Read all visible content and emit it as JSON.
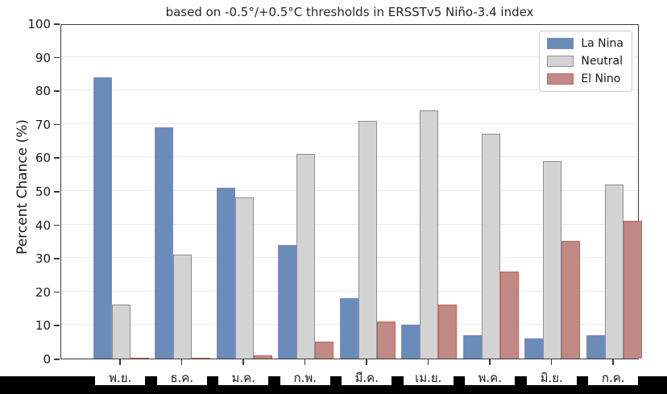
{
  "figure": {
    "title": "based on -0.5°/+0.5°C thresholds in ERSSTv5 Niño-3.4 index",
    "ylabel": "Percent Chance (%)"
  },
  "chart_data": {
    "type": "bar",
    "title": "based on -0.5°/+0.5°C thresholds in ERSSTv5 Niño-3.4 index",
    "xlabel": "",
    "ylabel": "Percent Chance (%)",
    "ylim": [
      0,
      100
    ],
    "ytick_step": 10,
    "grid": true,
    "legend_position": "upper right",
    "categories": [
      "พ.ย.",
      "ธ.ค.",
      "ม.ค.",
      "ก.พ.",
      "มี.ค.",
      "เม.ย.",
      "พ.ค.",
      "มิ.ย.",
      "ก.ค."
    ],
    "series": [
      {
        "name": "La Nina",
        "fill": "#6a8cb8",
        "edge": "#8487cb",
        "values": [
          84,
          69,
          51,
          34,
          18,
          10,
          7,
          6,
          7
        ]
      },
      {
        "name": "Neutral",
        "fill": "#d3d3d3",
        "edge": "#8e8e8e",
        "values": [
          16,
          31,
          48,
          61,
          71,
          74,
          67,
          59,
          52
        ]
      },
      {
        "name": "El Nino",
        "fill": "#c08984",
        "edge": "#c4625c",
        "values": [
          0,
          0,
          1,
          5,
          11,
          16,
          26,
          35,
          41
        ]
      }
    ]
  },
  "colors": {
    "background": "#ffffff",
    "spine": "#3a3a3a",
    "gridline": "#ececec",
    "text": "#1a1a1a",
    "bottom_bar": "#000000"
  }
}
